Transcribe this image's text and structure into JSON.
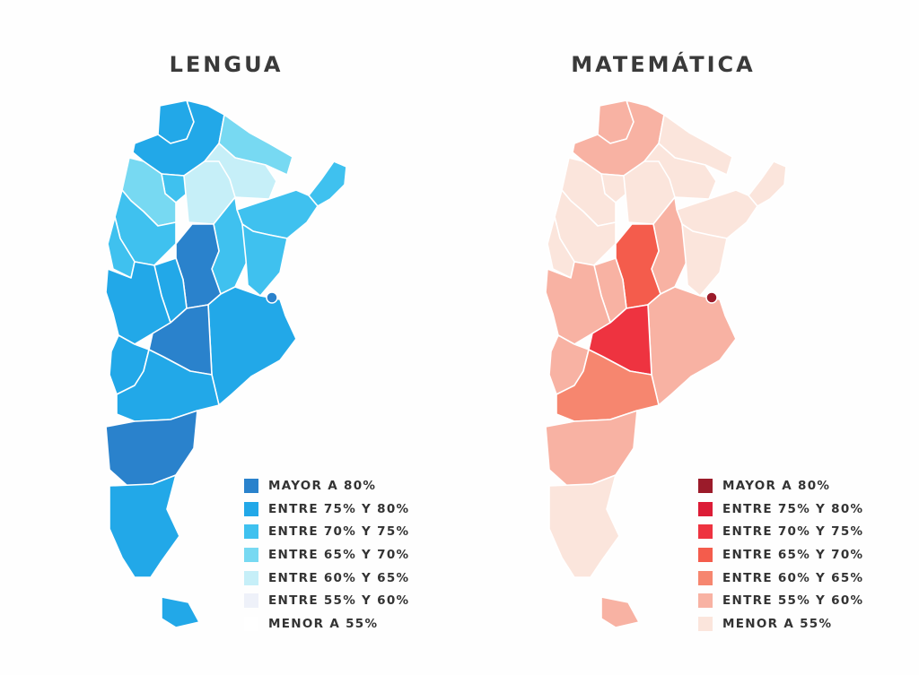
{
  "maps": {
    "left": {
      "title": "LENGUA",
      "legend": [
        {
          "label": "MAYOR A 80%",
          "color": "#2a82cc"
        },
        {
          "label": "ENTRE 75% Y 80%",
          "color": "#22a8e8"
        },
        {
          "label": "ENTRE 70% Y 75%",
          "color": "#3fc1ef"
        },
        {
          "label": "ENTRE 65% Y 70%",
          "color": "#77d9f2"
        },
        {
          "label": "ENTRE 60% Y 65%",
          "color": "#c6eff8"
        },
        {
          "label": "ENTRE 55% Y 60%",
          "color": "#eef1f9"
        },
        {
          "label": "MENOR A 55%",
          "color": "#ffffff"
        }
      ]
    },
    "right": {
      "title": "MATEMÁTICA",
      "legend": [
        {
          "label": "MAYOR A 80%",
          "color": "#9b1b2a"
        },
        {
          "label": "ENTRE 75% Y 80%",
          "color": "#dc1c36"
        },
        {
          "label": "ENTRE 70% Y 75%",
          "color": "#ee3340"
        },
        {
          "label": "ENTRE 65% Y 70%",
          "color": "#f45c4c"
        },
        {
          "label": "ENTRE 60% Y 65%",
          "color": "#f6866f"
        },
        {
          "label": "ENTRE 55% Y 60%",
          "color": "#f8b2a3"
        },
        {
          "label": "MENOR A 55%",
          "color": "#fbe5dc"
        }
      ]
    }
  },
  "provinces": [
    {
      "id": "jujuy",
      "left_level": "ENTRE 75% Y 80%",
      "right_level": "ENTRE 55% Y 60%"
    },
    {
      "id": "salta",
      "left_level": "ENTRE 75% Y 80%",
      "right_level": "ENTRE 55% Y 60%"
    },
    {
      "id": "formosa",
      "left_level": "ENTRE 65% Y 70%",
      "right_level": "MENOR A 55%"
    },
    {
      "id": "chaco",
      "left_level": "ENTRE 60% Y 65%",
      "right_level": "MENOR A 55%"
    },
    {
      "id": "misiones",
      "left_level": "ENTRE 70% Y 75%",
      "right_level": "MENOR A 55%"
    },
    {
      "id": "corrientes",
      "left_level": "ENTRE 70% Y 75%",
      "right_level": "MENOR A 55%"
    },
    {
      "id": "tucuman",
      "left_level": "ENTRE 70% Y 75%",
      "right_level": "MENOR A 55%"
    },
    {
      "id": "catamarca",
      "left_level": "ENTRE 65% Y 70%",
      "right_level": "MENOR A 55%"
    },
    {
      "id": "santiago-del-estero",
      "left_level": "ENTRE 60% Y 65%",
      "right_level": "MENOR A 55%"
    },
    {
      "id": "la-rioja",
      "left_level": "ENTRE 70% Y 75%",
      "right_level": "MENOR A 55%"
    },
    {
      "id": "santa-fe",
      "left_level": "ENTRE 70% Y 75%",
      "right_level": "ENTRE 55% Y 60%"
    },
    {
      "id": "entre-rios",
      "left_level": "ENTRE 70% Y 75%",
      "right_level": "MENOR A 55%"
    },
    {
      "id": "san-juan",
      "left_level": "ENTRE 70% Y 75%",
      "right_level": "MENOR A 55%"
    },
    {
      "id": "cordoba",
      "left_level": "MAYOR A 80%",
      "right_level": "ENTRE 65% Y 70%"
    },
    {
      "id": "san-luis",
      "left_level": "ENTRE 75% Y 80%",
      "right_level": "ENTRE 55% Y 60%"
    },
    {
      "id": "mendoza",
      "left_level": "ENTRE 75% Y 80%",
      "right_level": "ENTRE 55% Y 60%"
    },
    {
      "id": "buenos-aires",
      "left_level": "ENTRE 75% Y 80%",
      "right_level": "ENTRE 55% Y 60%"
    },
    {
      "id": "la-pampa",
      "left_level": "MAYOR A 80%",
      "right_level": "ENTRE 70% Y 75%"
    },
    {
      "id": "neuquen",
      "left_level": "ENTRE 75% Y 80%",
      "right_level": "ENTRE 55% Y 60%"
    },
    {
      "id": "rio-negro",
      "left_level": "ENTRE 75% Y 80%",
      "right_level": "ENTRE 60% Y 65%"
    },
    {
      "id": "chubut",
      "left_level": "MAYOR A 80%",
      "right_level": "ENTRE 55% Y 60%"
    },
    {
      "id": "santa-cruz",
      "left_level": "ENTRE 75% Y 80%",
      "right_level": "MENOR A 55%"
    },
    {
      "id": "tierra-del-fuego",
      "left_level": "ENTRE 75% Y 80%",
      "right_level": "ENTRE 55% Y 60%"
    },
    {
      "id": "caba",
      "left_level": "MAYOR A 80%",
      "right_level": "MAYOR A 80%"
    }
  ]
}
